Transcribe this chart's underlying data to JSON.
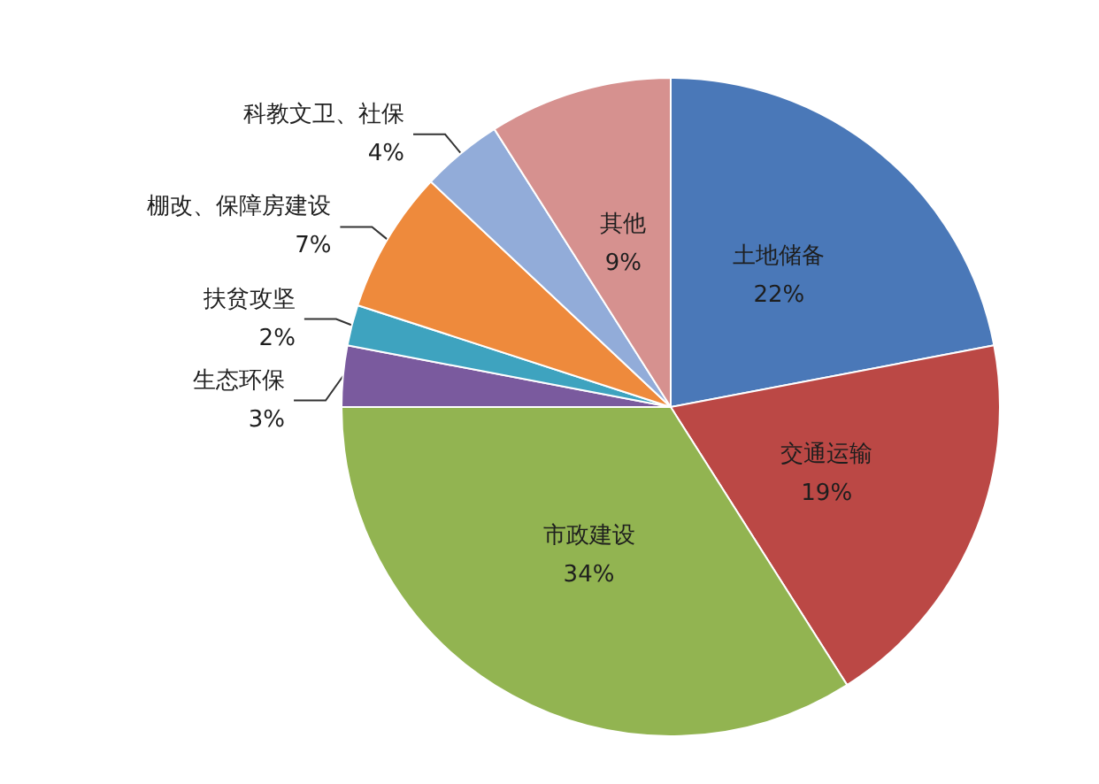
{
  "chart_data": {
    "type": "pie",
    "categories": [
      "土地储备",
      "交通运输",
      "市政建设",
      "生态环保",
      "扶贫攻坚",
      "棚改、保障房建设",
      "科教文卫、社保",
      "其他"
    ],
    "values": [
      22,
      19,
      34,
      3,
      2,
      7,
      4,
      9
    ],
    "value_labels": [
      "22%",
      "19%",
      "34%",
      "3%",
      "2%",
      "7%",
      "4%",
      "9%"
    ],
    "colors": [
      "#4a78b8",
      "#bb4845",
      "#92b451",
      "#7a5a9e",
      "#3ea3bf",
      "#ee8a3c",
      "#92acd9",
      "#d6918f"
    ]
  }
}
